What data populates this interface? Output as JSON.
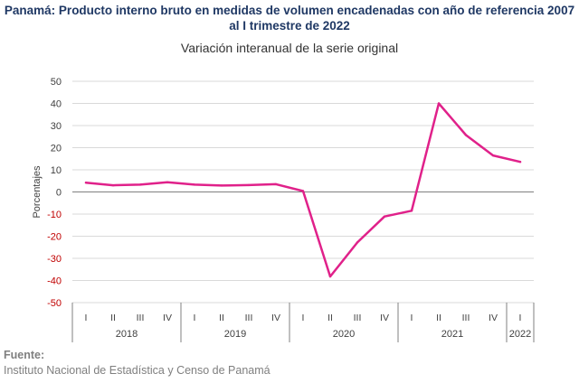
{
  "title_line1": "Panamá: Producto interno bruto en medidas  de volumen encadenadas con año de referencia 2007",
  "title_line2": "al I trimestre de 2022",
  "subtitle": "Variación interanual de la serie original",
  "footer": {
    "label": "Fuente:",
    "source": "Instituto Nacional de Estadística y Censo de Panamá"
  },
  "colors": {
    "line": "#e0218a",
    "negative_ticks": "#c00000",
    "text": "#404040",
    "grid": "#d9d9d9",
    "title": "#1f3864"
  },
  "chart_data": {
    "type": "line",
    "title": "Variación interanual de la serie original",
    "ylabel": "Porcentajes",
    "xlabel": "",
    "ylim": [
      -50,
      50
    ],
    "yticks": [
      50,
      40,
      30,
      20,
      10,
      0,
      -10,
      -20,
      -30,
      -40,
      -50
    ],
    "grid": true,
    "years": [
      {
        "label": "2018",
        "quarters": [
          "I",
          "II",
          "III",
          "IV"
        ]
      },
      {
        "label": "2019",
        "quarters": [
          "I",
          "II",
          "III",
          "IV"
        ]
      },
      {
        "label": "2020",
        "quarters": [
          "I",
          "II",
          "III",
          "IV"
        ]
      },
      {
        "label": "2021",
        "quarters": [
          "I",
          "II",
          "III",
          "IV"
        ]
      },
      {
        "label": "2022",
        "quarters": [
          "I"
        ]
      }
    ],
    "series": [
      {
        "values": [
          4.2,
          3.0,
          3.3,
          4.4,
          3.3,
          2.9,
          3.1,
          3.5,
          0.4,
          -38.2,
          -22.8,
          -11.1,
          -8.5,
          40.0,
          25.7,
          16.5,
          13.6
        ]
      }
    ]
  }
}
